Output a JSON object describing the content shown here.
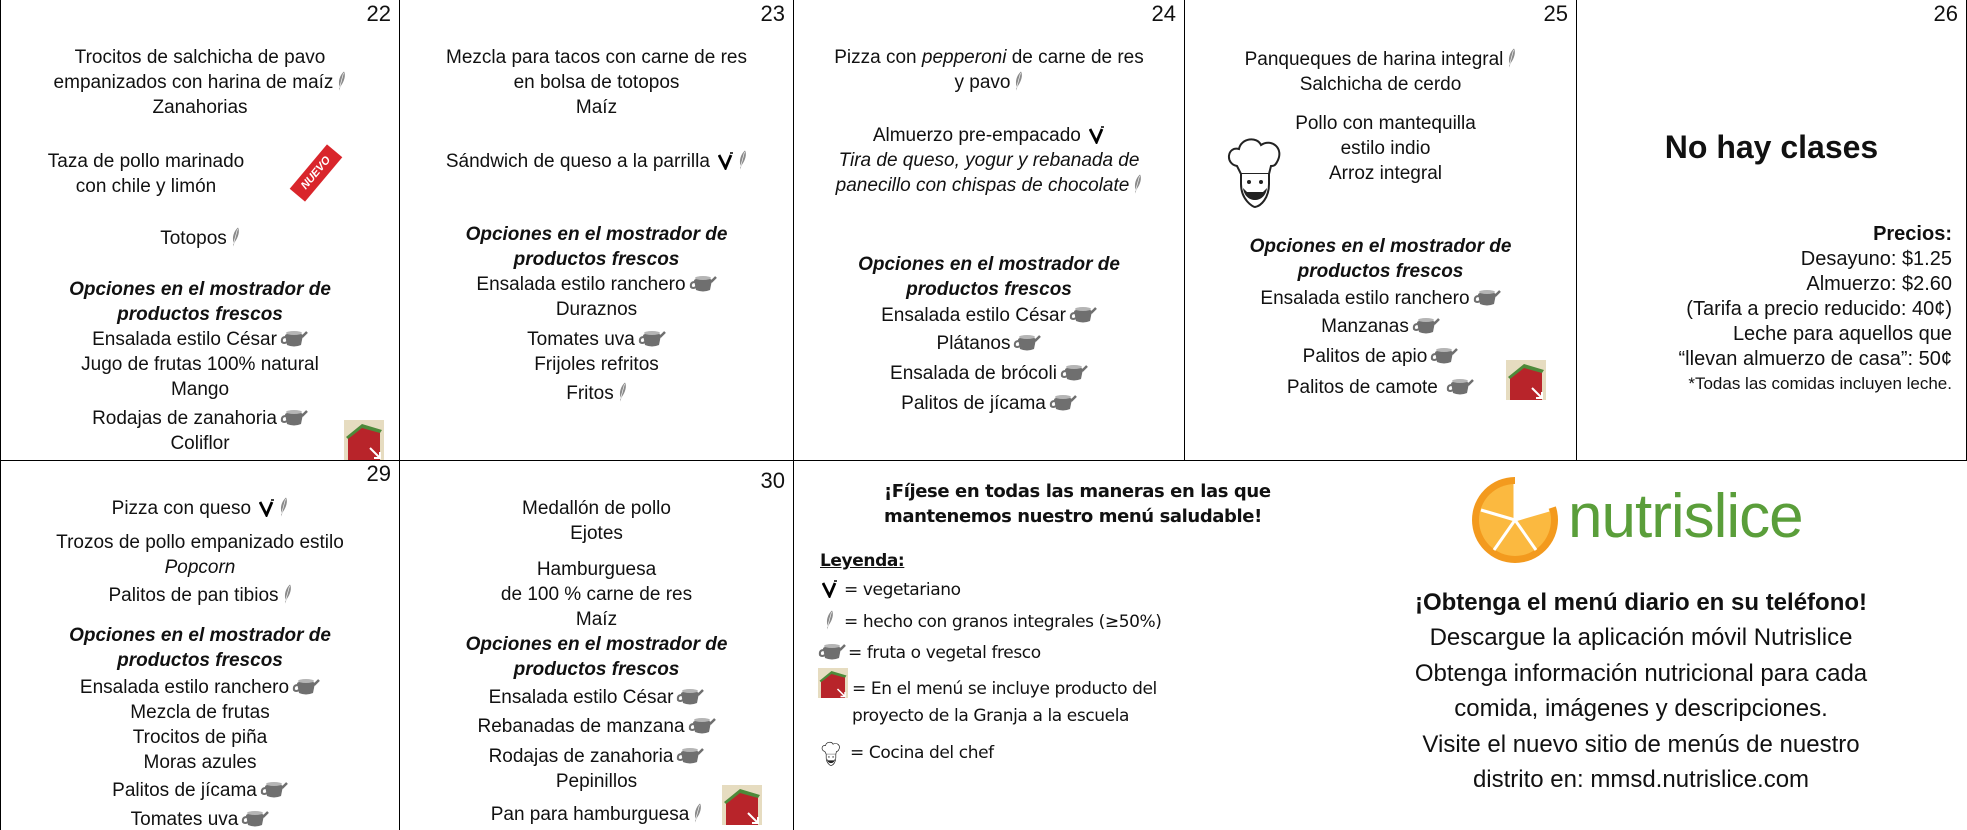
{
  "days": [
    {
      "day": "22",
      "lines": [
        "Trocitos de salchicha de pavo",
        "empanizados con harina de maíz",
        "Zanahorias",
        "Taza de pollo marinado",
        "con chile y limón",
        "NUEVO",
        "Totopos",
        "Opciones en el mostrador de productos frescos",
        "Ensalada estilo César",
        "Jugo de frutas 100% natural",
        "Mango",
        "Rodajas de zanahoria",
        "Coliflor"
      ]
    },
    {
      "day": "23",
      "lines": [
        "Mezcla para tacos con carne de res",
        "en bolsa de totopos",
        "Maíz",
        "Sándwich de queso a la parrilla",
        "Opciones en el mostrador de productos frescos",
        "Ensalada estilo ranchero",
        "Duraznos",
        "Tomates uva",
        "Frijoles refritos",
        "Fritos"
      ]
    },
    {
      "day": "24",
      "lines": [
        "Pizza con",
        "pepperoni",
        "de carne de res",
        "y pavo",
        "Almuerzo pre-empacado",
        "Tira de queso, yogur y rebanada de",
        "panecillo con chispas de chocolate",
        "Opciones en el mostrador de productos frescos",
        "Ensalada estilo César",
        "Plátanos",
        "Ensalada de brócoli",
        "Palitos de jícama"
      ]
    },
    {
      "day": "25",
      "lines": [
        "Panqueques de harina integral",
        "Salchicha de cerdo",
        "Pollo con mantequilla",
        "estilo indio",
        "Arroz integral",
        "Opciones en el mostrador de productos frescos",
        "Ensalada estilo ranchero",
        "Manzanas",
        "Palitos de apio",
        "Palitos de camote"
      ]
    },
    {
      "day": "26",
      "title": "No hay clases",
      "lines": [
        "Precios:",
        "Desayuno: $1.25",
        "Almuerzo: $2.60",
        "(Tarifa a precio reducido: 40¢)",
        "Leche para aquellos que",
        "“llevan almuerzo de casa”: 50¢",
        "*Todas las comidas incluyen leche."
      ]
    },
    {
      "day": "29",
      "lines": [
        "Pizza con queso",
        "Trozos de pollo empanizado estilo",
        "Popcorn",
        "Palitos de pan tibios",
        "Opciones en el mostrador de productos frescos",
        "Ensalada estilo ranchero",
        "Mezcla de frutas",
        "Trocitos de piña",
        "Moras azules",
        "Palitos de jícama",
        "Tomates uva"
      ]
    },
    {
      "day": "30",
      "lines": [
        "Medallón de pollo",
        "Ejotes",
        "Hamburguesa",
        "de 100 % carne de res",
        "Maíz",
        "Opciones en el mostrador de productos frescos",
        "Ensalada estilo César",
        "Rebanadas de manzana",
        "Rodajas de zanahoria",
        "Pepinillos",
        "Pan para hamburguesa"
      ]
    }
  ],
  "legend": {
    "intro": "¡Fíjese en todas las maneras en las que mantenemos nuestro menú saludable!",
    "title": "Leyenda:",
    "items": [
      "= vegetariano",
      "= hecho con granos integrales (≥50%)",
      "= fruta o vegetal fresco",
      "= En el menú se incluye producto del proyecto de la Granja a la escuela",
      "= Cocina del chef"
    ]
  },
  "promo": {
    "logo": "nutrislice",
    "heading": "¡Obtenga el menú diario en su teléfono!",
    "lines": [
      "Descargue la aplicación móvil Nutrislice",
      "Obtenga información nutricional para cada",
      "comida, imágenes y descripciones.",
      "Visite el nuevo sitio de menús de nuestro",
      "distrito en: mmsd.nutrislice.com"
    ]
  }
}
